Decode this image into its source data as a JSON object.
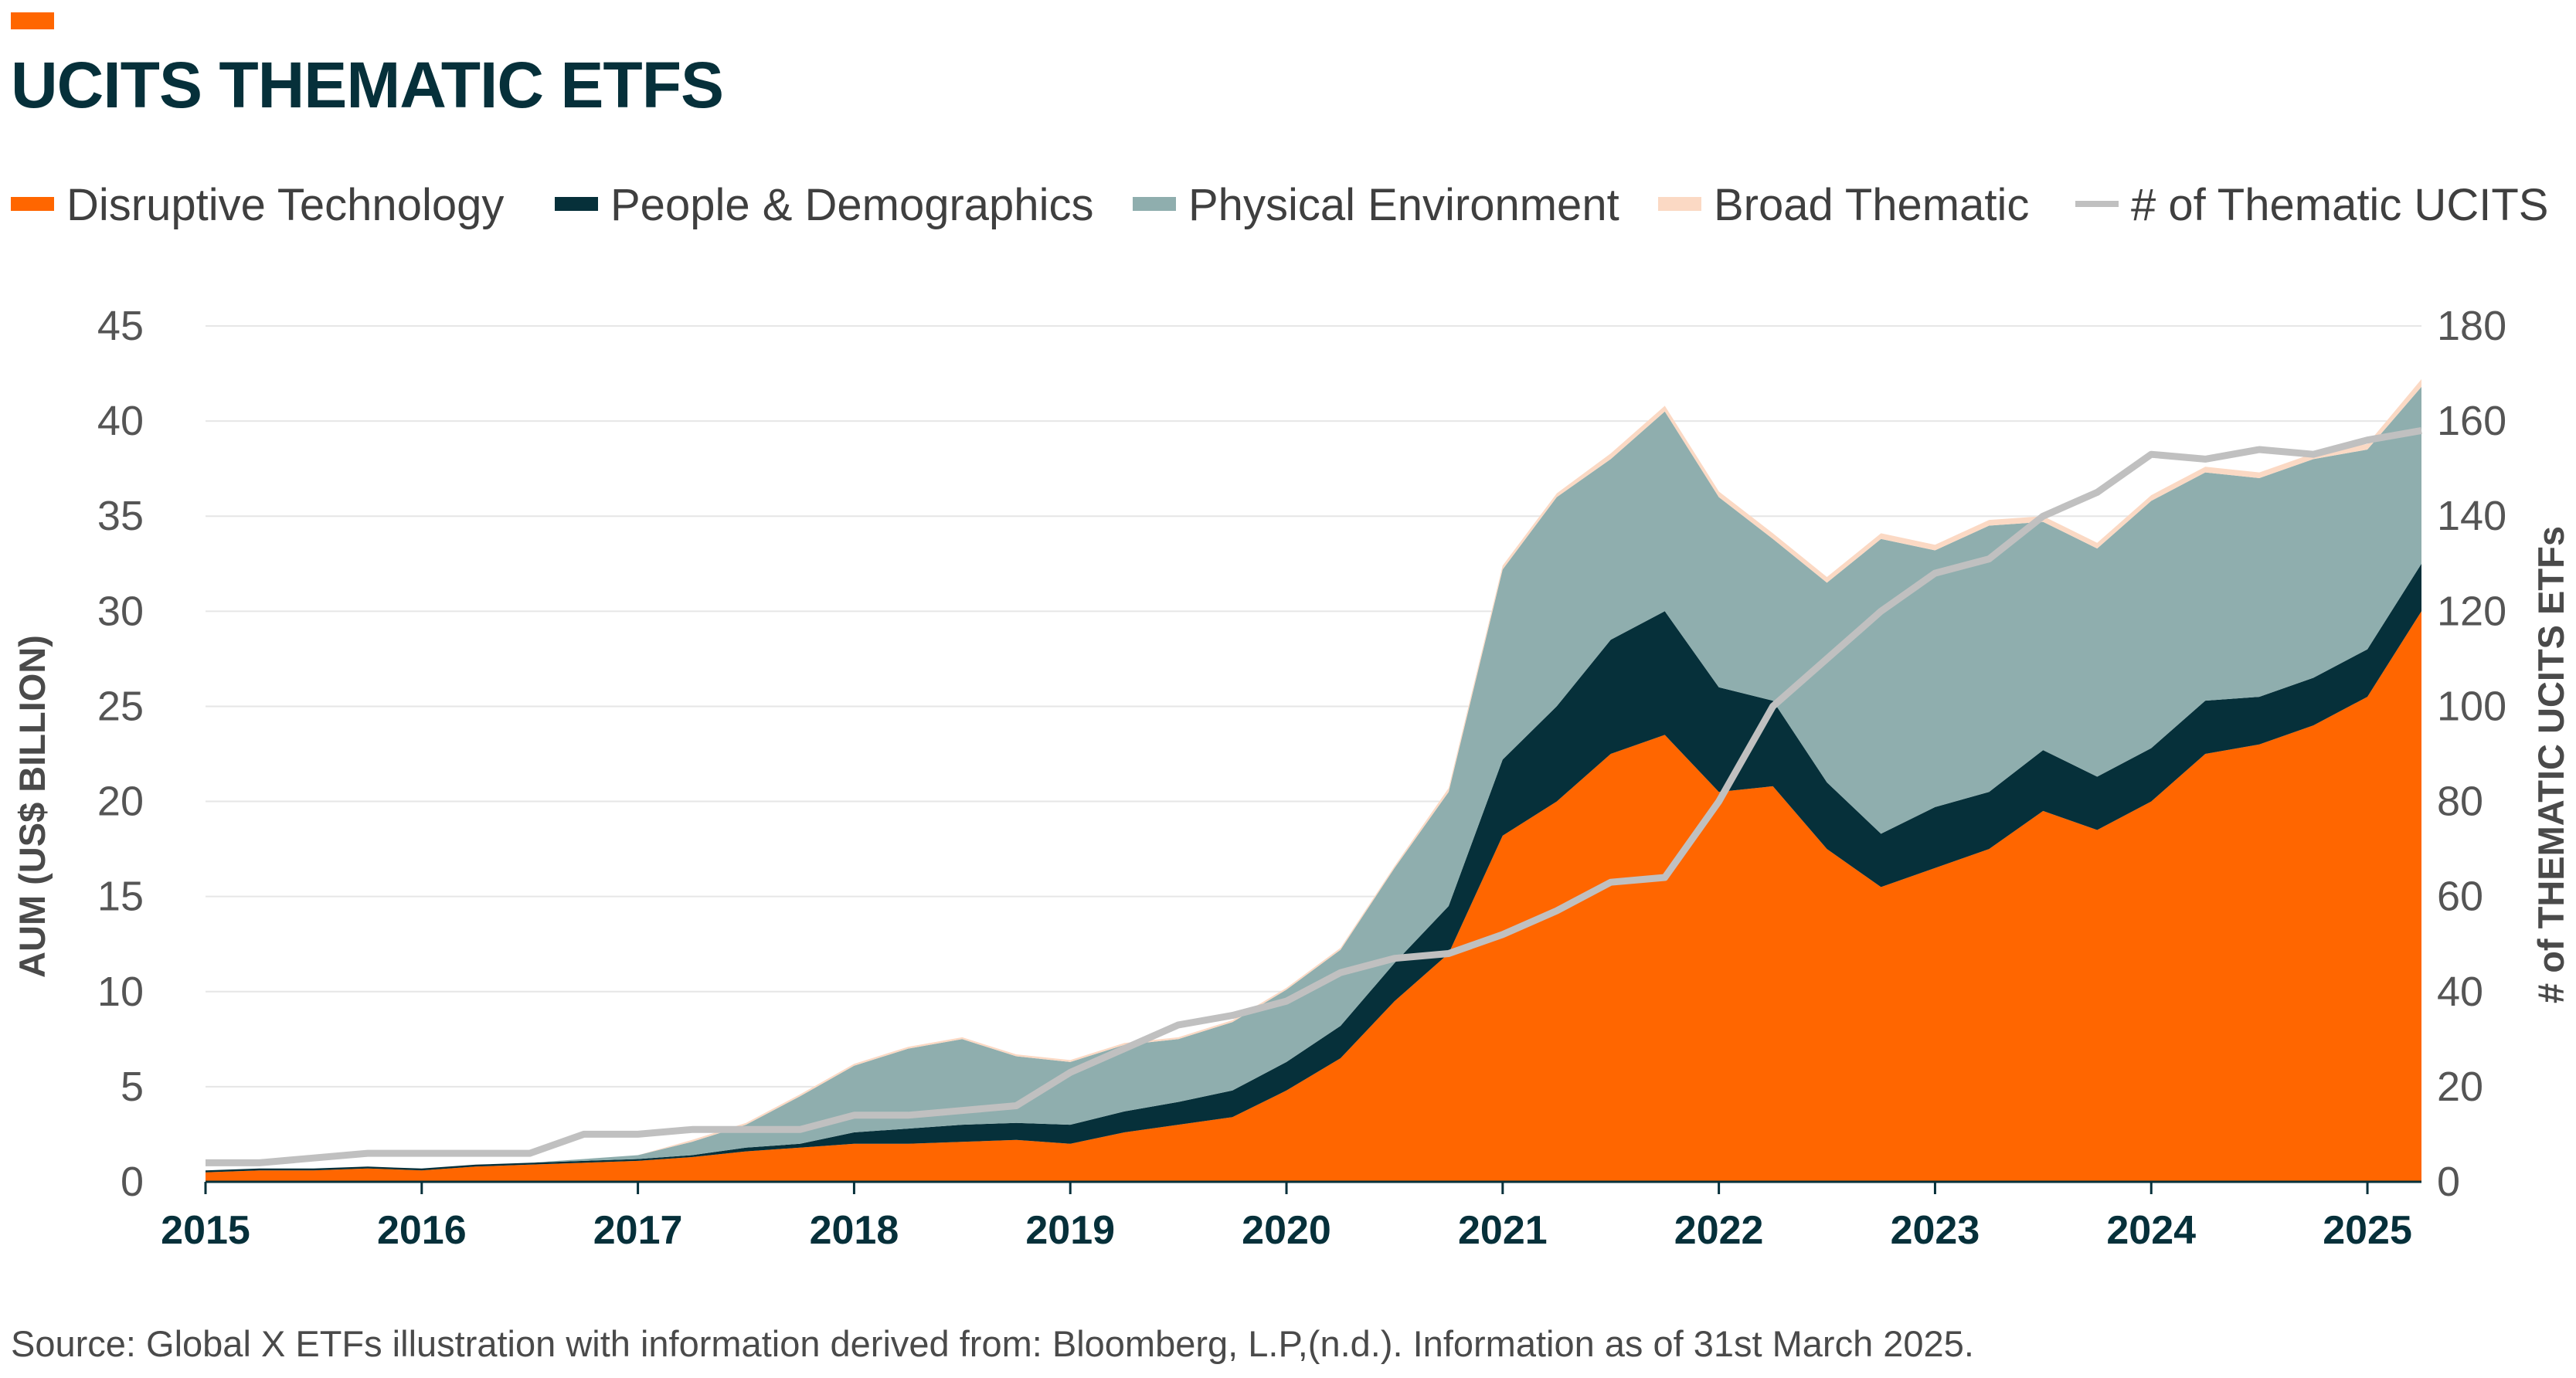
{
  "title": "UCITS THEMATIC ETFS",
  "source": "Source: Global X ETFs illustration with information derived from: Bloomberg, L.P,(n.d.). Information as of 31st March 2025.",
  "legend": [
    {
      "label": "Disruptive Technology",
      "color": "#ff6600",
      "kind": "area"
    },
    {
      "label": "People & Demographics",
      "color": "#06303a",
      "kind": "area"
    },
    {
      "label": "Physical Environment",
      "color": "#8faeae",
      "kind": "area"
    },
    {
      "label": "Broad Thematic",
      "color": "#fbd9c4",
      "kind": "area"
    },
    {
      "label": "# of Thematic UCITS",
      "color": "#c0c0c0",
      "kind": "line"
    }
  ],
  "chart_data": {
    "type": "area",
    "stacked": true,
    "title": "UCITS THEMATIC ETFS",
    "xlabel": "",
    "ylabel": "AUM (US$ BILLION)",
    "y2label": "# of THEMATIC UCITS ETFs",
    "xlim": [
      2015,
      2025.25
    ],
    "ylim": [
      0,
      45
    ],
    "y2lim": [
      0,
      180
    ],
    "xticks": [
      "2015",
      "2016",
      "2017",
      "2018",
      "2019",
      "2020",
      "2021",
      "2022",
      "2023",
      "2024",
      "2025"
    ],
    "yticks": [
      0,
      5,
      10,
      15,
      20,
      25,
      30,
      35,
      40,
      45
    ],
    "y2ticks": [
      0,
      20,
      40,
      60,
      80,
      100,
      120,
      140,
      160,
      180
    ],
    "grid": true,
    "x": [
      2015.0,
      2015.25,
      2015.5,
      2015.75,
      2016.0,
      2016.25,
      2016.5,
      2016.75,
      2017.0,
      2017.25,
      2017.5,
      2017.75,
      2018.0,
      2018.25,
      2018.5,
      2018.75,
      2019.0,
      2019.25,
      2019.5,
      2019.75,
      2020.0,
      2020.25,
      2020.5,
      2020.75,
      2021.0,
      2021.25,
      2021.5,
      2021.75,
      2022.0,
      2022.25,
      2022.5,
      2022.75,
      2023.0,
      2023.25,
      2023.5,
      2023.75,
      2024.0,
      2024.25,
      2024.5,
      2024.75,
      2025.0,
      2025.25
    ],
    "series": [
      {
        "name": "Disruptive Technology",
        "axis": "left",
        "color": "#ff6600",
        "values": [
          0.5,
          0.6,
          0.6,
          0.7,
          0.6,
          0.8,
          0.9,
          1.0,
          1.1,
          1.3,
          1.6,
          1.8,
          2.0,
          2.0,
          2.1,
          2.2,
          2.0,
          2.6,
          3.0,
          3.4,
          4.8,
          6.5,
          9.5,
          12.0,
          18.2,
          20.0,
          22.5,
          23.5,
          20.5,
          20.8,
          17.5,
          15.5,
          16.5,
          17.5,
          19.5,
          18.5,
          20.0,
          22.5,
          23.0,
          24.0,
          25.5,
          30.0
        ]
      },
      {
        "name": "People & Demographics",
        "axis": "left",
        "color": "#06303a",
        "values": [
          0.1,
          0.1,
          0.1,
          0.1,
          0.1,
          0.1,
          0.1,
          0.1,
          0.1,
          0.1,
          0.2,
          0.2,
          0.6,
          0.8,
          0.9,
          0.9,
          1.0,
          1.1,
          1.2,
          1.4,
          1.5,
          1.7,
          2.0,
          2.5,
          4.0,
          5.0,
          6.0,
          6.5,
          5.5,
          4.5,
          3.5,
          2.8,
          3.2,
          3.0,
          3.2,
          2.8,
          2.8,
          2.8,
          2.5,
          2.5,
          2.5,
          2.5
        ]
      },
      {
        "name": "Physical Environment",
        "axis": "left",
        "color": "#8faeae",
        "values": [
          0.0,
          0.0,
          0.0,
          0.0,
          0.0,
          0.0,
          0.0,
          0.1,
          0.2,
          0.7,
          1.2,
          2.5,
          3.5,
          4.2,
          4.5,
          3.5,
          3.3,
          3.5,
          3.3,
          3.6,
          3.8,
          4.0,
          5.0,
          6.0,
          10.0,
          11.0,
          9.5,
          10.5,
          10.0,
          8.5,
          10.5,
          15.5,
          13.5,
          14.0,
          12.0,
          12.0,
          13.0,
          12.0,
          11.5,
          11.5,
          10.5,
          9.3
        ]
      },
      {
        "name": "Broad Thematic",
        "axis": "left",
        "color": "#fbd9c4",
        "values": [
          0.0,
          0.0,
          0.0,
          0.0,
          0.0,
          0.0,
          0.0,
          0.0,
          0.0,
          0.1,
          0.1,
          0.1,
          0.1,
          0.1,
          0.1,
          0.1,
          0.1,
          0.1,
          0.1,
          0.1,
          0.1,
          0.1,
          0.1,
          0.2,
          0.2,
          0.2,
          0.3,
          0.3,
          0.3,
          0.3,
          0.3,
          0.3,
          0.3,
          0.3,
          0.3,
          0.3,
          0.3,
          0.3,
          0.3,
          0.3,
          0.3,
          0.4
        ]
      },
      {
        "name": "# of Thematic UCITS",
        "axis": "right",
        "type": "line",
        "color": "#c0c0c0",
        "values": [
          4,
          4,
          5,
          6,
          6,
          6,
          6,
          10,
          10,
          11,
          11,
          11,
          14,
          14,
          15,
          16,
          23,
          28,
          33,
          35,
          38,
          44,
          47,
          48,
          52,
          57,
          63,
          64,
          80,
          100,
          110,
          120,
          128,
          131,
          140,
          145,
          153,
          152,
          154,
          153,
          156,
          158
        ]
      }
    ]
  }
}
